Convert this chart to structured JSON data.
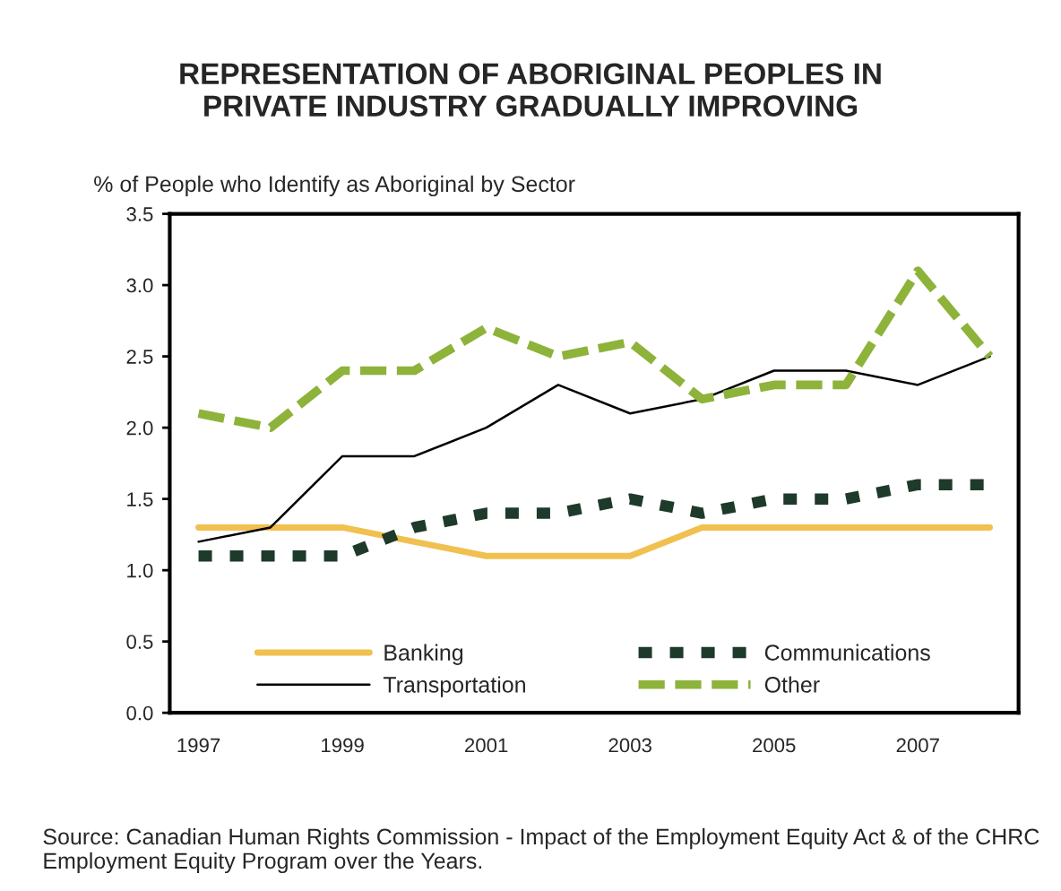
{
  "chart_data": {
    "type": "line",
    "title": "REPRESENTATION OF ABORIGINAL PEOPLES IN\nPRIVATE INDUSTRY GRADUALLY IMPROVING",
    "ylabel": "% of People who Identify as Aboriginal by Sector",
    "categories": [
      "1997",
      null,
      "1999",
      null,
      "2001",
      null,
      "2003",
      null,
      "2005",
      null,
      "2007",
      null
    ],
    "series": [
      {
        "name": "Banking",
        "color": "#f0c050",
        "line_style": "solid",
        "values": [
          1.3,
          1.3,
          1.3,
          1.2,
          1.1,
          1.1,
          1.1,
          1.3,
          1.3,
          1.3,
          1.3,
          1.3
        ]
      },
      {
        "name": "Communications",
        "color": "#1e3a2a",
        "line_style": "dotted",
        "values": [
          1.1,
          1.1,
          1.1,
          1.3,
          1.4,
          1.4,
          1.5,
          1.4,
          1.5,
          1.5,
          1.6,
          1.6
        ]
      },
      {
        "name": "Transportation",
        "color": "#000000",
        "line_style": "solid",
        "values": [
          1.2,
          1.3,
          1.8,
          1.8,
          2.0,
          2.3,
          2.1,
          2.2,
          2.4,
          2.4,
          2.3,
          2.5
        ]
      },
      {
        "name": "Other",
        "color": "#8db33a",
        "line_style": "dashed",
        "values": [
          2.1,
          2.0,
          2.4,
          2.4,
          2.7,
          2.5,
          2.6,
          2.2,
          2.3,
          2.3,
          3.1,
          2.5
        ]
      }
    ],
    "ylim": [
      0,
      3.5
    ],
    "yticks": [
      {
        "value": 0,
        "label": "0.0"
      },
      {
        "value": 0.5,
        "label": "0.5"
      },
      {
        "value": 1,
        "label": "1.0"
      },
      {
        "value": 1.5,
        "label": "1.5"
      },
      {
        "value": 2,
        "label": "2.0"
      },
      {
        "value": 2.5,
        "label": "2.5"
      },
      {
        "value": 3,
        "label": "3.0"
      },
      {
        "value": 3.5,
        "label": "3.5"
      }
    ],
    "grid": false,
    "legend": "bottom",
    "marker": "none",
    "annotations": [
      "Source: Canadian Human Rights Commission - Impact of the Employment Equity Act & of the CHRC Employment Equity Program over the Years."
    ]
  }
}
